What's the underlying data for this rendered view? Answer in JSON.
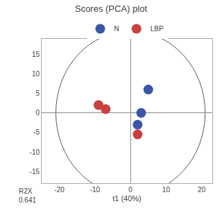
{
  "chart_data": {
    "type": "scatter",
    "title": "Scores (PCA) plot",
    "x_label": "t1 (40%)",
    "annotations": [
      "R2X\n0.641"
    ],
    "series": [
      {
        "name": "N",
        "color": "#3a56a5",
        "x": [
          5,
          3,
          2
        ],
        "y": [
          6,
          0,
          -3
        ]
      },
      {
        "name": "LBP",
        "color": "#c94040",
        "x": [
          -9,
          -7,
          2
        ],
        "y": [
          2,
          1,
          -5.5
        ]
      }
    ],
    "xlim": [
      -25,
      23
    ],
    "ylim": [
      -18,
      19
    ],
    "xticks": [
      -20,
      -10,
      0,
      10,
      20
    ],
    "yticks": [
      -15,
      -10,
      -5,
      0,
      5,
      10,
      15
    ],
    "grid": false,
    "legend": "top",
    "marker": "circle",
    "circle_center": [
      0,
      0
    ],
    "circle_radius": 21
  }
}
